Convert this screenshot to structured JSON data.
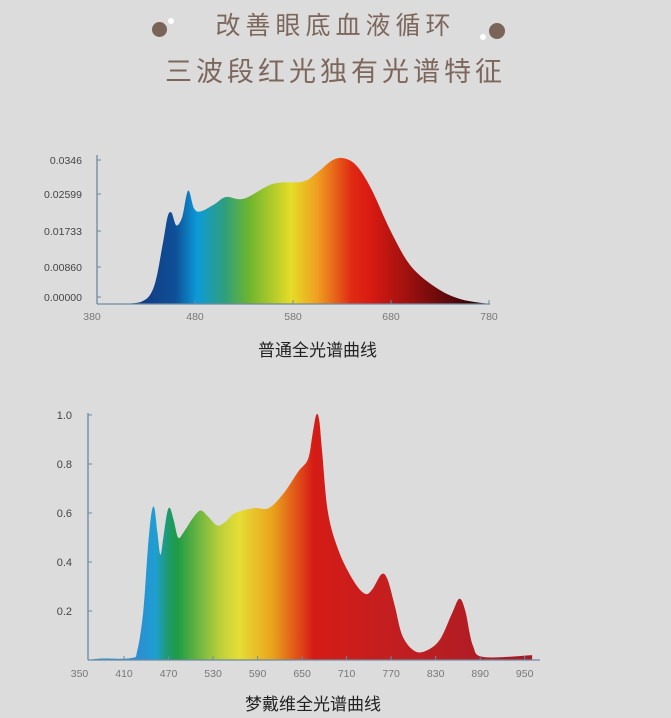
{
  "header": {
    "line1": "改善眼底血液循环",
    "line2": "三波段红光独有光谱特征",
    "text_color": "#7d675c",
    "dot_color": "#7a6357"
  },
  "chart_data": [
    {
      "type": "area",
      "title": "普通全光谱曲线",
      "xlabel": "",
      "ylabel": "",
      "xlim": [
        380,
        780
      ],
      "ylim": [
        0,
        0.0346
      ],
      "xticks": [
        "380",
        "480",
        "580",
        "680",
        "780"
      ],
      "yticks": [
        "0.00000",
        "0.00860",
        "0.01733",
        "0.02599",
        "0.0346"
      ],
      "x": [
        400,
        425,
        438,
        447,
        452,
        456,
        461,
        467,
        473,
        479,
        486,
        500,
        512,
        530,
        560,
        590,
        605,
        620,
        632,
        645,
        660,
        680,
        700,
        725,
        750,
        780
      ],
      "y": [
        0,
        0.0005,
        0.004,
        0.014,
        0.0205,
        0.0215,
        0.0185,
        0.0205,
        0.0267,
        0.0225,
        0.0218,
        0.0235,
        0.0252,
        0.0248,
        0.0283,
        0.0288,
        0.031,
        0.0338,
        0.0343,
        0.0325,
        0.027,
        0.017,
        0.009,
        0.004,
        0.0012,
        0
      ],
      "gradient": [
        [
          420,
          "#123a80"
        ],
        [
          460,
          "#0f4f97"
        ],
        [
          482,
          "#0c9ad8"
        ],
        [
          510,
          "#2e9f7d"
        ],
        [
          535,
          "#6db52f"
        ],
        [
          578,
          "#e6dc27"
        ],
        [
          605,
          "#ef9e20"
        ],
        [
          640,
          "#e02a12"
        ],
        [
          660,
          "#d71a12"
        ],
        [
          710,
          "#8a0e0e"
        ],
        [
          770,
          "#2a0206"
        ]
      ]
    },
    {
      "type": "area",
      "title": "梦戴维全光谱曲线",
      "xlabel": "",
      "ylabel": "",
      "xlim": [
        350,
        980
      ],
      "ylim": [
        0,
        1.0
      ],
      "xticks": [
        "350",
        "410",
        "470",
        "530",
        "590",
        "650",
        "710",
        "770",
        "830",
        "890",
        "950"
      ],
      "yticks": [
        "0.2",
        "0.4",
        "0.6",
        "0.8",
        "1.0"
      ],
      "x": [
        362,
        380,
        420,
        428,
        436,
        442,
        447,
        451,
        455,
        459,
        463,
        468,
        472,
        477,
        483,
        490,
        503,
        513,
        522,
        535,
        545,
        560,
        585,
        605,
        625,
        645,
        658,
        664,
        669,
        673,
        677,
        685,
        700,
        720,
        735,
        745,
        757,
        765,
        775,
        785,
        800,
        815,
        835,
        852,
        862,
        870,
        880,
        895,
        960
      ],
      "y": [
        0,
        0.006,
        0.008,
        0.04,
        0.2,
        0.45,
        0.6,
        0.62,
        0.52,
        0.43,
        0.5,
        0.6,
        0.62,
        0.57,
        0.5,
        0.52,
        0.58,
        0.61,
        0.59,
        0.55,
        0.56,
        0.6,
        0.62,
        0.62,
        0.68,
        0.77,
        0.82,
        0.92,
        1.0,
        0.98,
        0.85,
        0.6,
        0.44,
        0.32,
        0.27,
        0.29,
        0.35,
        0.33,
        0.22,
        0.1,
        0.04,
        0.035,
        0.08,
        0.19,
        0.25,
        0.2,
        0.06,
        0.012,
        0.02
      ],
      "gradient": [
        [
          430,
          "#2a8ed2"
        ],
        [
          452,
          "#1e9fd2"
        ],
        [
          470,
          "#1d9a6a"
        ],
        [
          482,
          "#1f9b45"
        ],
        [
          540,
          "#bdd03a"
        ],
        [
          565,
          "#e5de36"
        ],
        [
          610,
          "#eaa31c"
        ],
        [
          645,
          "#e04d18"
        ],
        [
          665,
          "#d51c16"
        ],
        [
          780,
          "#c11e21"
        ],
        [
          960,
          "#a51c25"
        ]
      ]
    }
  ]
}
